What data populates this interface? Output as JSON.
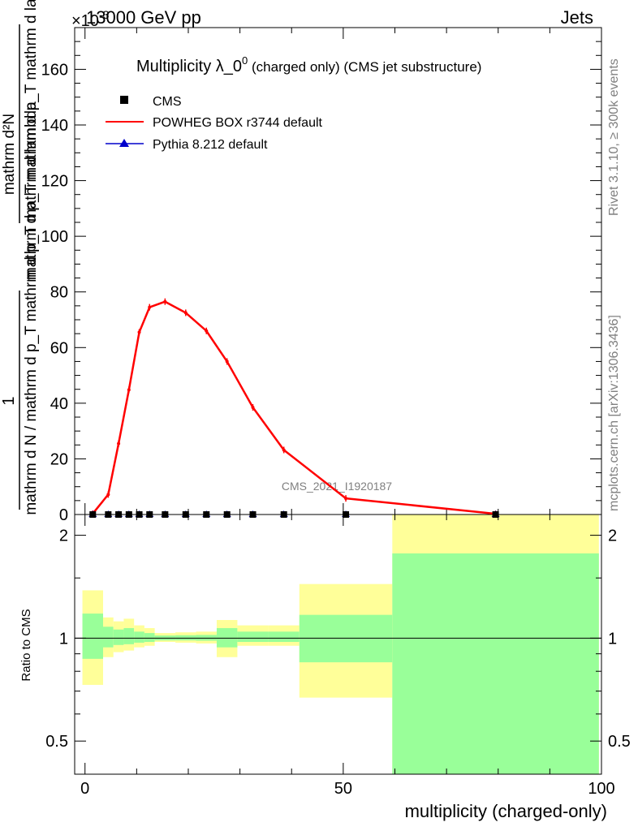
{
  "header": {
    "left": "13000 GeV pp",
    "right": "Jets",
    "exponent": "×10",
    "exponent_power": "-3"
  },
  "side_labels": {
    "rivet": "Rivet 3.1.10, ≥ 300k events",
    "mcplots": "mcplots.cern.ch [arXiv:1306.3436]"
  },
  "watermark": "CMS_2021_I1920187",
  "colors": {
    "powheg": "#ff0000",
    "pythia": "#0000cc",
    "cms": "#000000",
    "band_yellow": "#ffff99",
    "band_green": "#99ff99"
  },
  "chart_data": [
    {
      "type": "line",
      "title": "Multiplicity λ_0",
      "title_sup": "0",
      "title_suffix": " (charged only) (CMS jet substructure)",
      "ylabel": {
        "numerator": "1",
        "denominator": "mathrm d N / mathrm d p_T mathrm d p_T mathrm d lambda",
        "factor_numerator": "mathrm d²N",
        "factor_denominator": "mathrm d p_T mathrm d p_T mathrm d lambda"
      },
      "xlim": [
        -2,
        100
      ],
      "ylim": [
        0,
        175
      ],
      "y_ticks": [
        0,
        20,
        40,
        60,
        80,
        100,
        120,
        140,
        160
      ],
      "y_tick_labels": [
        "0",
        "20",
        "40",
        "60",
        "80",
        "100",
        "120",
        "140",
        "160"
      ],
      "legend": [
        "CMS",
        "POWHEG BOX r3744 default",
        "Pythia 8.212 default"
      ],
      "legend_position": "top-left",
      "series": [
        {
          "name": "POWHEG BOX r3744 default",
          "x": [
            1.5,
            4.5,
            6.5,
            8.5,
            10.5,
            12.5,
            15.5,
            19.5,
            23.5,
            27.5,
            32.5,
            38.5,
            50.5,
            79.5
          ],
          "values": [
            0.3,
            7.2,
            25.5,
            44.8,
            65.5,
            74.5,
            76.5,
            72.5,
            66,
            55,
            38.5,
            23.2,
            5.8,
            0.25
          ]
        },
        {
          "name": "CMS",
          "x": [
            1.5,
            4.5,
            6.5,
            8.5,
            10.5,
            12.5,
            15.5,
            19.5,
            23.5,
            27.5,
            32.5,
            38.5,
            50.5,
            79.5
          ],
          "values": [
            0,
            0,
            0,
            0,
            0,
            0,
            0,
            0,
            0,
            0,
            0,
            0,
            0,
            0
          ]
        },
        {
          "name": "Pythia 8.212 default",
          "x": [
            1.5,
            4.5,
            6.5,
            8.5,
            10.5,
            12.5,
            15.5,
            19.5,
            23.5,
            27.5,
            32.5,
            38.5,
            50.5,
            79.5
          ],
          "values": [
            0,
            0,
            0,
            0,
            0,
            0,
            0,
            0,
            0,
            0,
            0,
            0,
            0,
            0
          ]
        }
      ]
    },
    {
      "type": "area",
      "ylabel": "Ratio to CMS",
      "xlabel": "multiplicity (charged-only)",
      "xlim": [
        -2,
        100
      ],
      "ylim": [
        0.4,
        2.3
      ],
      "y_scale": "log",
      "x_ticks": [
        0,
        50,
        100
      ],
      "x_tick_labels": [
        "0",
        "50",
        "100"
      ],
      "y_ticks": [
        0.5,
        1,
        2
      ],
      "y_tick_labels": [
        "0.5",
        "1",
        "2"
      ],
      "reference_line": 1,
      "bins": [
        {
          "lo": -0.5,
          "hi": 3.5,
          "yellow": [
            0.73,
            1.38
          ],
          "green": [
            0.87,
            1.18
          ]
        },
        {
          "lo": 3.5,
          "hi": 5.5,
          "yellow": [
            0.88,
            1.15
          ],
          "green": [
            0.94,
            1.08
          ]
        },
        {
          "lo": 5.5,
          "hi": 7.5,
          "yellow": [
            0.91,
            1.12
          ],
          "green": [
            0.955,
            1.06
          ]
        },
        {
          "lo": 7.5,
          "hi": 9.5,
          "yellow": [
            0.92,
            1.14
          ],
          "green": [
            0.96,
            1.07
          ]
        },
        {
          "lo": 9.5,
          "hi": 11.5,
          "yellow": [
            0.94,
            1.09
          ],
          "green": [
            0.97,
            1.045
          ]
        },
        {
          "lo": 11.5,
          "hi": 13.5,
          "yellow": [
            0.95,
            1.07
          ],
          "green": [
            0.975,
            1.035
          ]
        },
        {
          "lo": 13.5,
          "hi": 17.5,
          "yellow": [
            0.975,
            1.035
          ],
          "green": [
            0.985,
            1.018
          ]
        },
        {
          "lo": 17.5,
          "hi": 21.5,
          "yellow": [
            0.97,
            1.04
          ],
          "green": [
            0.985,
            1.02
          ]
        },
        {
          "lo": 21.5,
          "hi": 25.5,
          "yellow": [
            0.965,
            1.045
          ],
          "green": [
            0.983,
            1.022
          ]
        },
        {
          "lo": 25.5,
          "hi": 29.5,
          "yellow": [
            0.88,
            1.13
          ],
          "green": [
            0.94,
            1.07
          ]
        },
        {
          "lo": 29.5,
          "hi": 35.5,
          "yellow": [
            0.95,
            1.09
          ],
          "green": [
            0.975,
            1.045
          ]
        },
        {
          "lo": 35.5,
          "hi": 41.5,
          "yellow": [
            0.95,
            1.09
          ],
          "green": [
            0.975,
            1.045
          ]
        },
        {
          "lo": 41.5,
          "hi": 59.5,
          "yellow": [
            0.67,
            1.44
          ],
          "green": [
            0.85,
            1.17
          ]
        },
        {
          "lo": 59.5,
          "hi": 99.5,
          "yellow": [
            0.4,
            2.3
          ],
          "green": [
            0.4,
            1.77
          ]
        }
      ]
    }
  ]
}
